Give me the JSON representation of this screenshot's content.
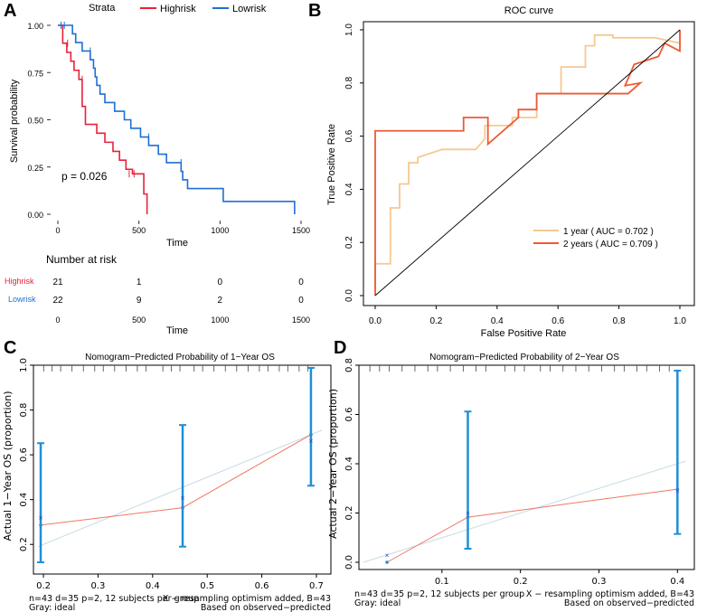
{
  "colors": {
    "high": "#e8213a",
    "low": "#1f6fd1",
    "roc1": "#f6c891",
    "roc2": "#ec5a35",
    "cal_point": "#1f8fd8",
    "cal_fit": "#ef7763",
    "ideal": "#c8dbe5"
  },
  "panels": {
    "a": "A",
    "b": "B",
    "c": "C",
    "d": "D"
  },
  "km": {
    "legend_title": "Strata",
    "legend_high": "Highrisk",
    "legend_low": "Lowrisk",
    "ylabel": "Survival probability",
    "xlabel": "Time",
    "pvalue": "p = 0.026",
    "yticks": [
      "0.00",
      "0.25",
      "0.50",
      "0.75",
      "1.00"
    ],
    "xticks": [
      "0",
      "500",
      "1000",
      "1500"
    ],
    "risk_title": "Number at risk",
    "risk_xlabel": "Time",
    "risk_rows": [
      {
        "label": "Highrisk",
        "counts": [
          "21",
          "1",
          "0",
          "0"
        ]
      },
      {
        "label": "Lowrisk",
        "counts": [
          "22",
          "9",
          "2",
          "0"
        ]
      }
    ]
  },
  "chart_data": [
    {
      "type": "line",
      "title": "",
      "xlabel": "Time",
      "ylabel": "Survival probability",
      "xlim": [
        0,
        1500
      ],
      "ylim": [
        0,
        1
      ],
      "series": [
        {
          "name": "Highrisk",
          "x": [
            0,
            30,
            55,
            80,
            100,
            130,
            150,
            170,
            240,
            290,
            340,
            380,
            420,
            460,
            530,
            550
          ],
          "y": [
            1.0,
            0.905,
            0.857,
            0.81,
            0.762,
            0.714,
            0.571,
            0.476,
            0.429,
            0.381,
            0.333,
            0.286,
            0.238,
            0.214,
            0.107,
            0.0
          ]
        },
        {
          "name": "Lowrisk",
          "x": [
            0,
            90,
            110,
            150,
            200,
            220,
            230,
            240,
            260,
            290,
            350,
            410,
            450,
            510,
            560,
            620,
            670,
            760,
            770,
            800,
            1020,
            1460
          ],
          "y": [
            1.0,
            0.955,
            0.909,
            0.864,
            0.818,
            0.773,
            0.727,
            0.682,
            0.636,
            0.591,
            0.545,
            0.5,
            0.455,
            0.409,
            0.364,
            0.318,
            0.273,
            0.227,
            0.182,
            0.136,
            0.068,
            0.0
          ]
        }
      ]
    },
    {
      "type": "line",
      "title": "ROC curve",
      "xlabel": "False Positive Rate",
      "ylabel": "True Positive Rate",
      "xlim": [
        0,
        1
      ],
      "ylim": [
        0,
        1
      ],
      "xticks": [
        "0.0",
        "0.2",
        "0.4",
        "0.6",
        "0.8",
        "1.0"
      ],
      "yticks": [
        "0.0",
        "0.2",
        "0.4",
        "0.6",
        "0.8",
        "1.0"
      ],
      "series": [
        {
          "name": "1 year ( AUC = 0.702 )",
          "x": [
            0,
            0,
            0.05,
            0.05,
            0.08,
            0.08,
            0.11,
            0.11,
            0.14,
            0.14,
            0.22,
            0.33,
            0.36,
            0.36,
            0.45,
            0.45,
            0.53,
            0.53,
            0.61,
            0.61,
            0.69,
            0.69,
            0.72,
            0.72,
            0.78,
            0.78,
            0.92,
            1.0,
            1.0
          ],
          "y": [
            0,
            0.12,
            0.12,
            0.33,
            0.33,
            0.42,
            0.42,
            0.5,
            0.5,
            0.52,
            0.55,
            0.55,
            0.59,
            0.64,
            0.64,
            0.67,
            0.67,
            0.76,
            0.76,
            0.86,
            0.86,
            0.94,
            0.94,
            0.98,
            0.98,
            0.97,
            0.97,
            0.95,
            1.0
          ]
        },
        {
          "name": "2 years ( AUC = 0.709 )",
          "x": [
            0,
            0,
            0.29,
            0.29,
            0.37,
            0.37,
            0.47,
            0.47,
            0.53,
            0.53,
            0.83,
            0.87,
            0.82,
            0.85,
            0.93,
            0.95,
            1.0,
            1.0
          ],
          "y": [
            0,
            0.62,
            0.62,
            0.67,
            0.67,
            0.57,
            0.67,
            0.7,
            0.7,
            0.76,
            0.76,
            0.8,
            0.79,
            0.87,
            0.9,
            0.95,
            0.92,
            1.0
          ]
        },
        {
          "name": "diagonal",
          "x": [
            0,
            1
          ],
          "y": [
            0,
            1
          ]
        }
      ]
    },
    {
      "type": "scatter",
      "title": "Nomogram−Predicted Probability of 1−Year OS",
      "xlabel": "",
      "ylabel": "Actual 1−Year OS (proportion)",
      "xlim": [
        0.19,
        0.71
      ],
      "ylim": [
        0.1,
        1.0
      ],
      "xticks": [
        "0.2",
        "0.3",
        "0.4",
        "0.5",
        "0.6",
        "0.7"
      ],
      "yticks": [
        "0.2",
        "0.4",
        "0.6",
        "0.8",
        "1.0"
      ],
      "footer_left": "n=43 d=35 p=2, 12 subjects per group",
      "footer_gray": "Gray: ideal",
      "footer_right1": "X − resampling optimism added, B=43",
      "footer_right2": "Based on observed−predicted",
      "points": [
        {
          "x": 0.195,
          "y": 0.286,
          "lo": 0.12,
          "hi": 0.652,
          "corrected": 0.32
        },
        {
          "x": 0.455,
          "y": 0.364,
          "lo": 0.19,
          "hi": 0.733,
          "corrected": 0.408
        },
        {
          "x": 0.69,
          "y": 0.69,
          "lo": 0.462,
          "hi": 0.988,
          "corrected": 0.664
        }
      ]
    },
    {
      "type": "scatter",
      "title": "Nomogram−Predicted Probability of 2−Year OS",
      "xlabel": "",
      "ylabel": "Actual 2−Year OS (proportion)",
      "xlim": [
        0.0,
        0.41
      ],
      "ylim": [
        0.0,
        0.8
      ],
      "xticks": [
        "0.1",
        "0.2",
        "0.3",
        "0.4"
      ],
      "yticks": [
        "0.0",
        "0.2",
        "0.4",
        "0.6",
        "0.8"
      ],
      "footer_left": "n=43 d=35 p=2, 12 subjects per group",
      "footer_gray": "Gray: ideal",
      "footer_right1": "X − resampling optimism added, B=43",
      "footer_right2": "Based on observed−predicted",
      "points": [
        {
          "x": 0.03,
          "y": 0.0,
          "lo": 0.0,
          "hi": 0.0,
          "corrected": 0.03
        },
        {
          "x": 0.133,
          "y": 0.183,
          "lo": 0.055,
          "hi": 0.612,
          "corrected": 0.2
        },
        {
          "x": 0.4,
          "y": 0.297,
          "lo": 0.115,
          "hi": 0.778,
          "corrected": 0.29
        }
      ]
    }
  ]
}
